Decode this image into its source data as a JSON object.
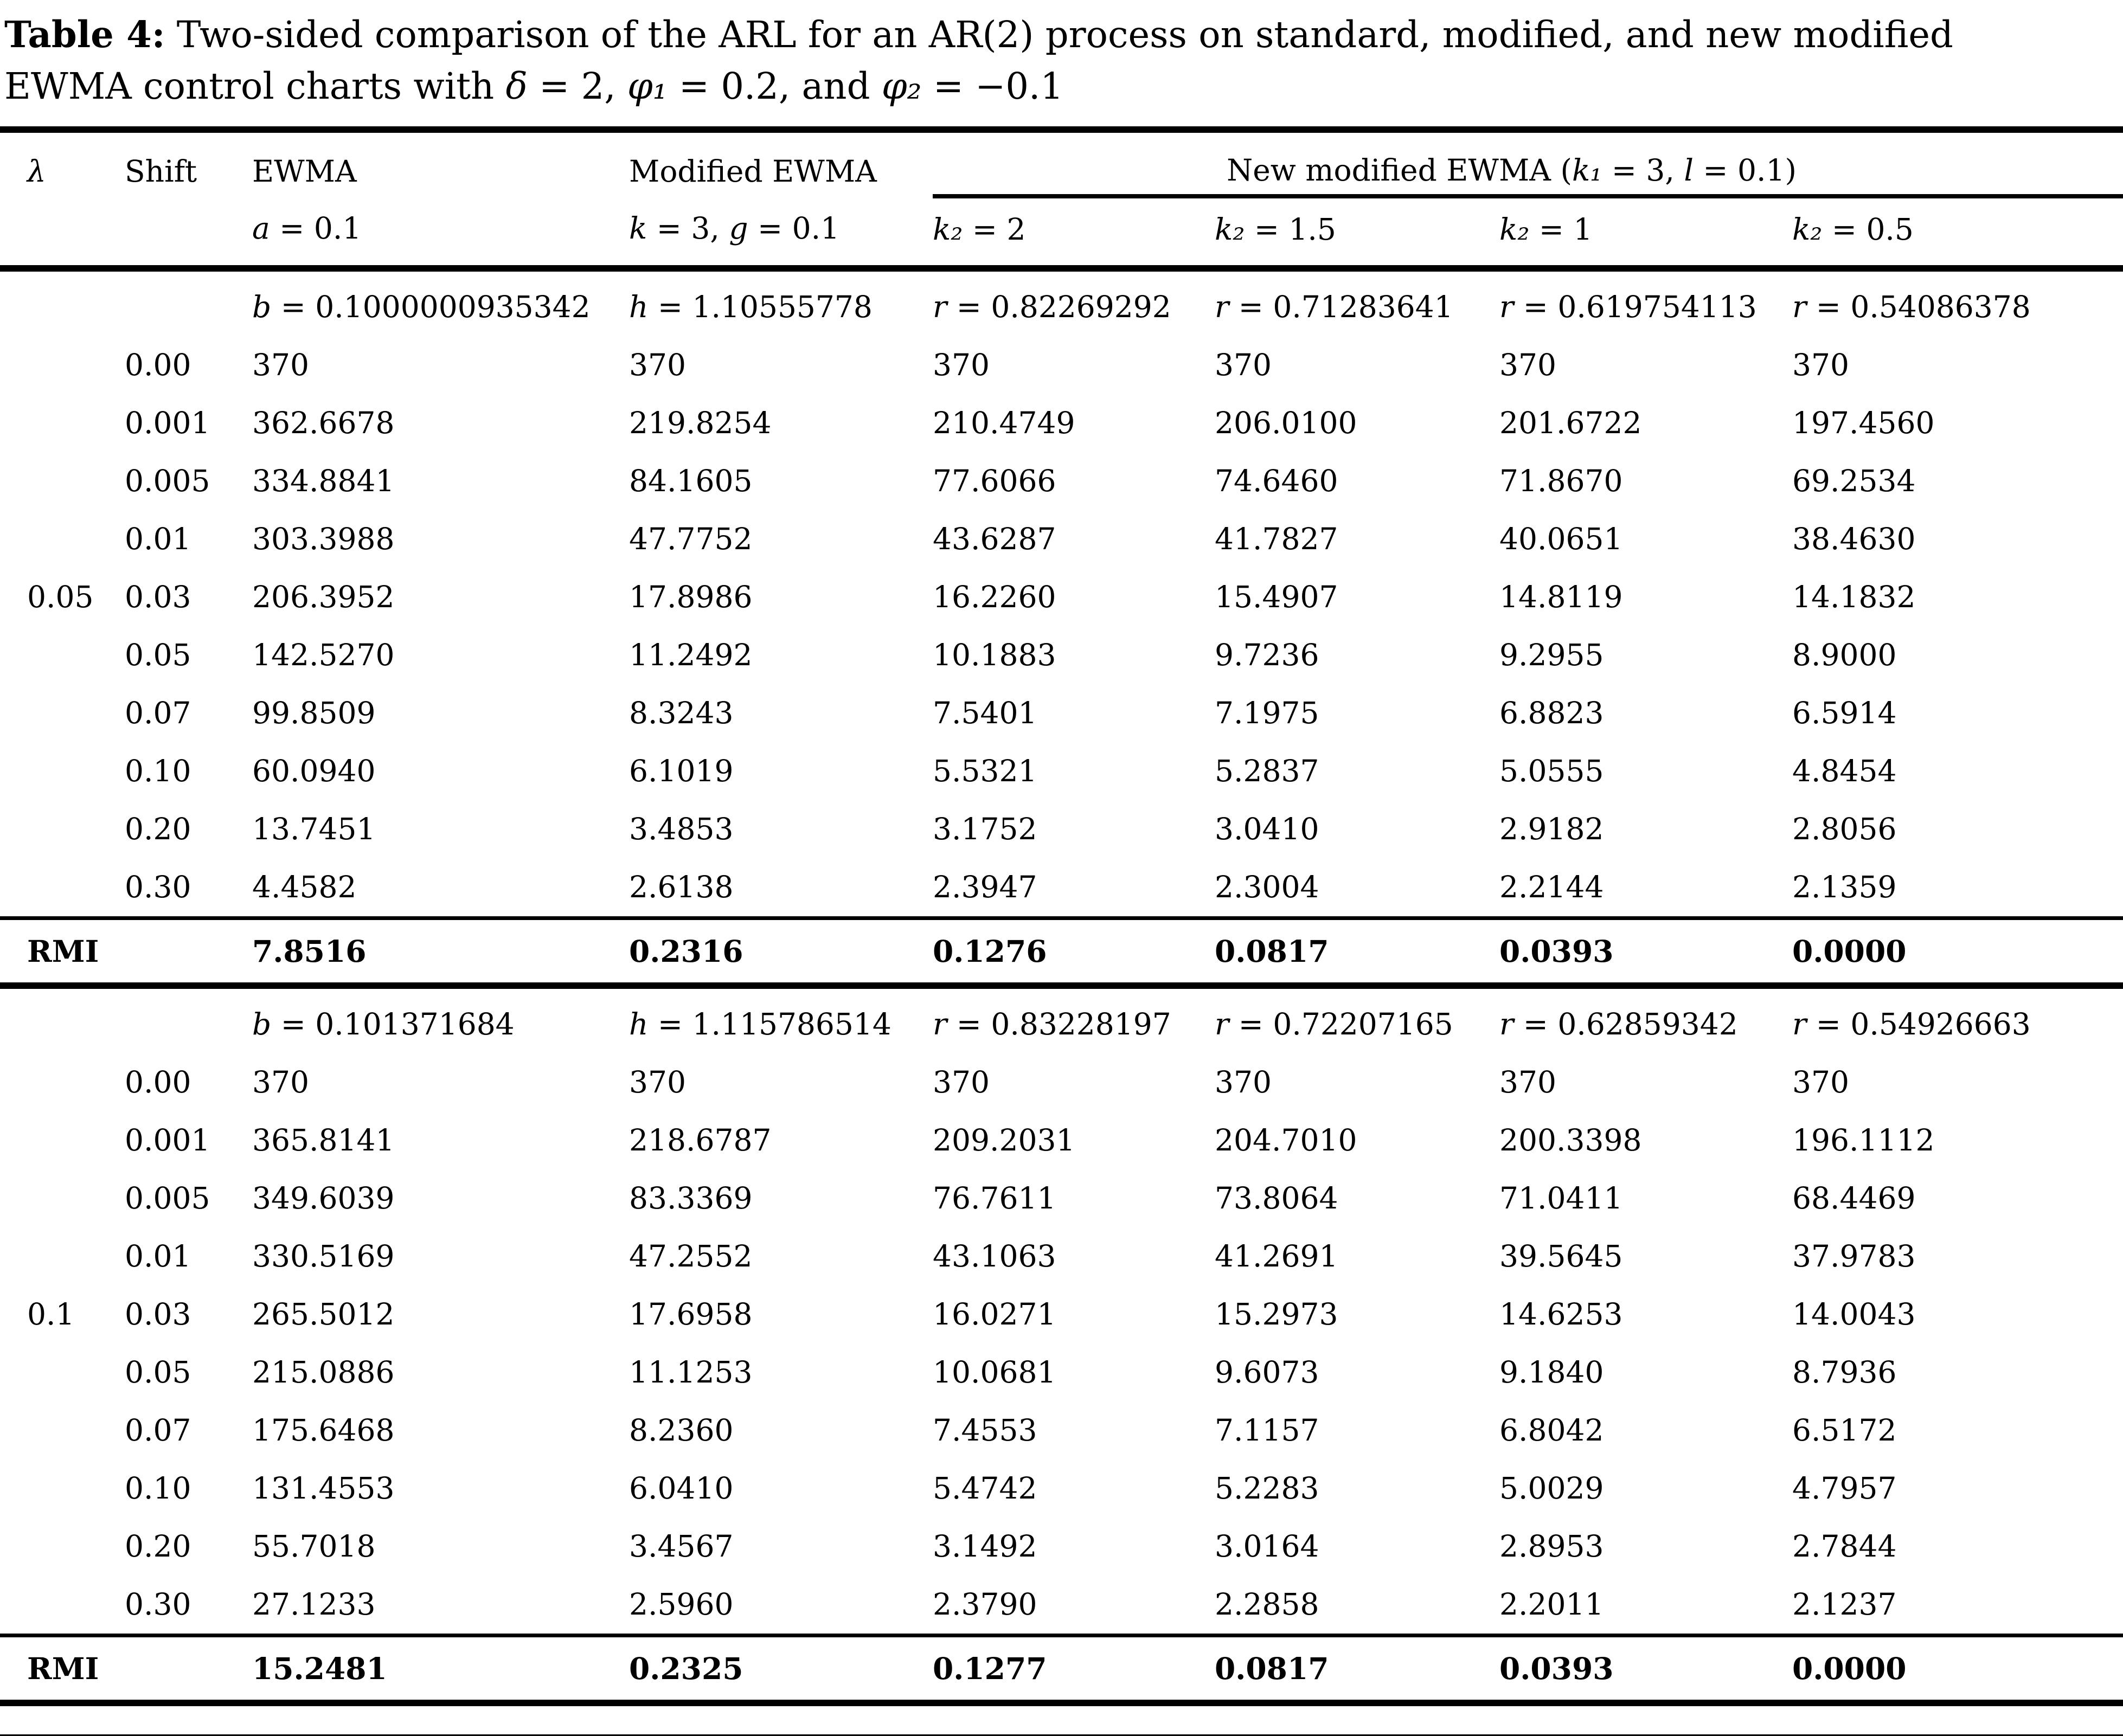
{
  "title": {
    "label": "Table 4:",
    "line1_rest": " Two-sided comparison of the ARL for an AR(2) process on standard, modified, and new modified",
    "line2_parts": [
      {
        "i": false,
        "t": "EWMA control charts with "
      },
      {
        "i": true,
        "t": "δ"
      },
      {
        "i": false,
        "t": " = 2, "
      },
      {
        "i": true,
        "t": "φ₁"
      },
      {
        "i": false,
        "t": " = 0.2, and "
      },
      {
        "i": true,
        "t": "φ₂"
      },
      {
        "i": false,
        "t": " = −0.1"
      }
    ]
  },
  "columns": [
    {
      "key": "lambda",
      "parts": [
        {
          "i": true,
          "t": "λ"
        }
      ]
    },
    {
      "key": "shift",
      "parts": [
        {
          "i": false,
          "t": "Shift"
        }
      ]
    },
    {
      "key": "ewma",
      "parts": [
        {
          "i": false,
          "t": "EWMA"
        }
      ]
    },
    {
      "key": "modified",
      "parts": [
        {
          "i": false,
          "t": "Modified EWMA"
        }
      ]
    },
    {
      "key": "new_modified",
      "parts": [
        {
          "i": false,
          "t": "New modified EWMA ("
        },
        {
          "i": true,
          "t": "k₁"
        },
        {
          "i": false,
          "t": " = 3, "
        },
        {
          "i": true,
          "t": "l"
        },
        {
          "i": false,
          "t": " = 0.1)"
        }
      ]
    }
  ],
  "subheaders": [
    {
      "parts": [
        {
          "i": true,
          "t": "a"
        },
        {
          "i": false,
          "t": " = 0.1"
        }
      ]
    },
    {
      "parts": [
        {
          "i": true,
          "t": "k"
        },
        {
          "i": false,
          "t": " = 3, "
        },
        {
          "i": true,
          "t": "g"
        },
        {
          "i": false,
          "t": " = 0.1"
        }
      ]
    },
    {
      "parts": [
        {
          "i": true,
          "t": "k₂"
        },
        {
          "i": false,
          "t": " = 2"
        }
      ]
    },
    {
      "parts": [
        {
          "i": true,
          "t": "k₂"
        },
        {
          "i": false,
          "t": " = 1.5"
        }
      ]
    },
    {
      "parts": [
        {
          "i": true,
          "t": "k₂"
        },
        {
          "i": false,
          "t": " = 1"
        }
      ]
    },
    {
      "parts": [
        {
          "i": true,
          "t": "k₂"
        },
        {
          "i": false,
          "t": " = 0.5"
        }
      ]
    }
  ],
  "sections": [
    {
      "lambda_value": "0.05",
      "params": [
        {
          "parts": [
            {
              "i": true,
              "t": "b"
            },
            {
              "i": false,
              "t": " = 0.1000000935342"
            }
          ]
        },
        {
          "parts": [
            {
              "i": true,
              "t": "h"
            },
            {
              "i": false,
              "t": " = 1.10555778"
            }
          ]
        },
        {
          "parts": [
            {
              "i": true,
              "t": "r"
            },
            {
              "i": false,
              "t": " = 0.82269292"
            }
          ]
        },
        {
          "parts": [
            {
              "i": true,
              "t": "r"
            },
            {
              "i": false,
              "t": " = 0.71283641"
            }
          ]
        },
        {
          "parts": [
            {
              "i": true,
              "t": "r"
            },
            {
              "i": false,
              "t": " = 0.619754113"
            }
          ]
        },
        {
          "parts": [
            {
              "i": true,
              "t": "r"
            },
            {
              "i": false,
              "t": " = 0.54086378"
            }
          ]
        }
      ],
      "rows": [
        {
          "shift": "0.00",
          "values": [
            "370",
            "370",
            "370",
            "370",
            "370",
            "370"
          ]
        },
        {
          "shift": "0.001",
          "values": [
            "362.6678",
            "219.8254",
            "210.4749",
            "206.0100",
            "201.6722",
            "197.4560"
          ]
        },
        {
          "shift": "0.005",
          "values": [
            "334.8841",
            "84.1605",
            "77.6066",
            "74.6460",
            "71.8670",
            "69.2534"
          ]
        },
        {
          "shift": "0.01",
          "values": [
            "303.3988",
            "47.7752",
            "43.6287",
            "41.7827",
            "40.0651",
            "38.4630"
          ]
        },
        {
          "shift": "0.03",
          "lambda": "0.05",
          "values": [
            "206.3952",
            "17.8986",
            "16.2260",
            "15.4907",
            "14.8119",
            "14.1832"
          ]
        },
        {
          "shift": "0.05",
          "values": [
            "142.5270",
            "11.2492",
            "10.1883",
            "9.7236",
            "9.2955",
            "8.9000"
          ]
        },
        {
          "shift": "0.07",
          "values": [
            "99.8509",
            "8.3243",
            "7.5401",
            "7.1975",
            "6.8823",
            "6.5914"
          ]
        },
        {
          "shift": "0.10",
          "values": [
            "60.0940",
            "6.1019",
            "5.5321",
            "5.2837",
            "5.0555",
            "4.8454"
          ]
        },
        {
          "shift": "0.20",
          "values": [
            "13.7451",
            "3.4853",
            "3.1752",
            "3.0410",
            "2.9182",
            "2.8056"
          ]
        },
        {
          "shift": "0.30",
          "values": [
            "4.4582",
            "2.6138",
            "2.3947",
            "2.3004",
            "2.2144",
            "2.1359"
          ]
        }
      ],
      "rmi": {
        "label": "RMI",
        "values": [
          "7.8516",
          "0.2316",
          "0.1276",
          "0.0817",
          "0.0393",
          "0.0000"
        ]
      }
    },
    {
      "lambda_value": "0.1",
      "params": [
        {
          "parts": [
            {
              "i": true,
              "t": "b"
            },
            {
              "i": false,
              "t": " = 0.101371684"
            }
          ]
        },
        {
          "parts": [
            {
              "i": true,
              "t": "h"
            },
            {
              "i": false,
              "t": " = 1.115786514"
            }
          ]
        },
        {
          "parts": [
            {
              "i": true,
              "t": "r"
            },
            {
              "i": false,
              "t": " = 0.83228197"
            }
          ]
        },
        {
          "parts": [
            {
              "i": true,
              "t": "r"
            },
            {
              "i": false,
              "t": " = 0.72207165"
            }
          ]
        },
        {
          "parts": [
            {
              "i": true,
              "t": "r"
            },
            {
              "i": false,
              "t": " = 0.62859342"
            }
          ]
        },
        {
          "parts": [
            {
              "i": true,
              "t": "r"
            },
            {
              "i": false,
              "t": " = 0.54926663"
            }
          ]
        }
      ],
      "rows": [
        {
          "shift": "0.00",
          "values": [
            "370",
            "370",
            "370",
            "370",
            "370",
            "370"
          ]
        },
        {
          "shift": "0.001",
          "values": [
            "365.8141",
            "218.6787",
            "209.2031",
            "204.7010",
            "200.3398",
            "196.1112"
          ]
        },
        {
          "shift": "0.005",
          "values": [
            "349.6039",
            "83.3369",
            "76.7611",
            "73.8064",
            "71.0411",
            "68.4469"
          ]
        },
        {
          "shift": "0.01",
          "values": [
            "330.5169",
            "47.2552",
            "43.1063",
            "41.2691",
            "39.5645",
            "37.9783"
          ]
        },
        {
          "shift": "0.03",
          "lambda": "0.1",
          "values": [
            "265.5012",
            "17.6958",
            "16.0271",
            "15.2973",
            "14.6253",
            "14.0043"
          ]
        },
        {
          "shift": "0.05",
          "values": [
            "215.0886",
            "11.1253",
            "10.0681",
            "9.6073",
            "9.1840",
            "8.7936"
          ]
        },
        {
          "shift": "0.07",
          "values": [
            "175.6468",
            "8.2360",
            "7.4553",
            "7.1157",
            "6.8042",
            "6.5172"
          ]
        },
        {
          "shift": "0.10",
          "values": [
            "131.4553",
            "6.0410",
            "5.4742",
            "5.2283",
            "5.0029",
            "4.7957"
          ]
        },
        {
          "shift": "0.20",
          "values": [
            "55.7018",
            "3.4567",
            "3.1492",
            "3.0164",
            "2.8953",
            "2.7844"
          ]
        },
        {
          "shift": "0.30",
          "values": [
            "27.1233",
            "2.5960",
            "2.3790",
            "2.2858",
            "2.2011",
            "2.1237"
          ]
        }
      ],
      "rmi": {
        "label": "RMI",
        "values": [
          "15.2481",
          "0.2325",
          "0.1277",
          "0.0817",
          "0.0393",
          "0.0000"
        ]
      }
    }
  ]
}
